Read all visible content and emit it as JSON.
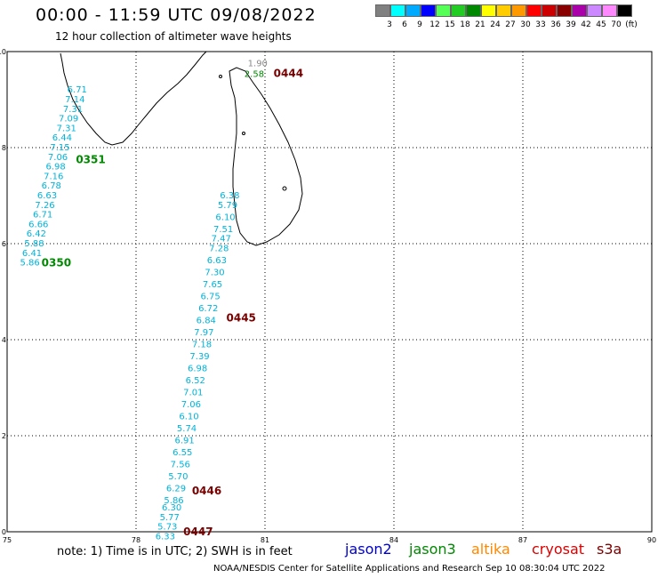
{
  "header": {
    "title": "00:00 - 11:59 UTC 09/08/2022",
    "subtitle": "12 hour collection of altimeter wave heights"
  },
  "legend": {
    "colors": [
      "#808080",
      "#00ffff",
      "#00aaff",
      "#0000ff",
      "#55ff55",
      "#22cc22",
      "#008800",
      "#ffff00",
      "#ffcc00",
      "#ff9900",
      "#ff0000",
      "#cc0000",
      "#880000",
      "#aa00aa",
      "#cc88ff",
      "#ff88ff",
      "#000000"
    ],
    "labels": [
      "3",
      "6",
      "9",
      "12",
      "15",
      "18",
      "21",
      "24",
      "27",
      "30",
      "33",
      "36",
      "39",
      "42",
      "45",
      "70",
      "(ft)"
    ]
  },
  "map": {
    "x_ticks": [
      "75",
      "78",
      "81",
      "84",
      "87",
      "90"
    ],
    "y_ticks": [
      "0",
      "2",
      "4",
      "6",
      "8",
      "10"
    ],
    "passes": [
      {
        "time": "0444",
        "color": "#7a0000",
        "lon": 81.2,
        "lat": 9.55,
        "labels": [
          {
            "v": "1.90",
            "lon": 80.6,
            "lat": 9.75,
            "c": "#888888"
          },
          {
            "v": "2.58",
            "lon": 80.52,
            "lat": 9.53,
            "c": "#008800"
          }
        ]
      },
      {
        "time": "0351",
        "color": "#008800",
        "lon": 76.6,
        "lat": 7.75,
        "labels": [
          {
            "v": "6.71",
            "lon": 76.4,
            "lat": 9.2
          },
          {
            "v": "7.14",
            "lon": 76.35,
            "lat": 9.0
          },
          {
            "v": "7.31",
            "lon": 76.3,
            "lat": 8.8
          },
          {
            "v": "7.09",
            "lon": 76.2,
            "lat": 8.6
          },
          {
            "v": "7.31",
            "lon": 76.15,
            "lat": 8.4
          },
          {
            "v": "6.44",
            "lon": 76.05,
            "lat": 8.2
          },
          {
            "v": "7.15",
            "lon": 76.0,
            "lat": 8.0
          },
          {
            "v": "7.06",
            "lon": 75.95,
            "lat": 7.8
          },
          {
            "v": "6.98",
            "lon": 75.9,
            "lat": 7.6
          },
          {
            "v": "7.16",
            "lon": 75.85,
            "lat": 7.4
          },
          {
            "v": "6.78",
            "lon": 75.8,
            "lat": 7.2
          },
          {
            "v": "6.63",
            "lon": 75.7,
            "lat": 7.0
          },
          {
            "v": "7.26",
            "lon": 75.65,
            "lat": 6.8
          },
          {
            "v": "6.71",
            "lon": 75.6,
            "lat": 6.6
          },
          {
            "v": "6.66",
            "lon": 75.5,
            "lat": 6.4
          },
          {
            "v": "6.42",
            "lon": 75.45,
            "lat": 6.2
          },
          {
            "v": "5.88",
            "lon": 75.4,
            "lat": 6.0
          },
          {
            "v": "6.41",
            "lon": 75.35,
            "lat": 5.8
          },
          {
            "v": "5.86",
            "lon": 75.3,
            "lat": 5.6
          }
        ]
      },
      {
        "time": "0350",
        "color": "#008800",
        "lon": 75.8,
        "lat": 5.6,
        "labels": []
      },
      {
        "time": "0445",
        "color": "#7a0000",
        "lon": 80.1,
        "lat": 4.45,
        "labels": [
          {
            "v": "6.38",
            "lon": 79.95,
            "lat": 7.0
          },
          {
            "v": "5.79",
            "lon": 79.9,
            "lat": 6.8
          },
          {
            "v": "6.10",
            "lon": 79.85,
            "lat": 6.55
          },
          {
            "v": "7.51",
            "lon": 79.8,
            "lat": 6.3
          },
          {
            "v": "7.47",
            "lon": 79.75,
            "lat": 6.1
          },
          {
            "v": "7.28",
            "lon": 79.7,
            "lat": 5.9
          },
          {
            "v": "6.63",
            "lon": 79.65,
            "lat": 5.65
          },
          {
            "v": "7.30",
            "lon": 79.6,
            "lat": 5.4
          },
          {
            "v": "7.65",
            "lon": 79.55,
            "lat": 5.15
          },
          {
            "v": "6.75",
            "lon": 79.5,
            "lat": 4.9
          },
          {
            "v": "6.72",
            "lon": 79.45,
            "lat": 4.65
          },
          {
            "v": "6.84",
            "lon": 79.4,
            "lat": 4.4
          },
          {
            "v": "7.97",
            "lon": 79.35,
            "lat": 4.15
          },
          {
            "v": "7.18",
            "lon": 79.3,
            "lat": 3.9
          },
          {
            "v": "7.39",
            "lon": 79.25,
            "lat": 3.65
          },
          {
            "v": "6.98",
            "lon": 79.2,
            "lat": 3.4
          },
          {
            "v": "6.52",
            "lon": 79.15,
            "lat": 3.15
          },
          {
            "v": "7.01",
            "lon": 79.1,
            "lat": 2.9
          },
          {
            "v": "7.06",
            "lon": 79.05,
            "lat": 2.65
          },
          {
            "v": "6.10",
            "lon": 79.0,
            "lat": 2.4
          },
          {
            "v": "5.74",
            "lon": 78.95,
            "lat": 2.15
          },
          {
            "v": "6.91",
            "lon": 78.9,
            "lat": 1.9
          },
          {
            "v": "6.55",
            "lon": 78.85,
            "lat": 1.65
          },
          {
            "v": "7.56",
            "lon": 78.8,
            "lat": 1.4
          },
          {
            "v": "5.70",
            "lon": 78.75,
            "lat": 1.15
          },
          {
            "v": "6.29",
            "lon": 78.7,
            "lat": 0.9
          }
        ]
      },
      {
        "time": "0446",
        "color": "#7a0000",
        "lon": 79.3,
        "lat": 0.85,
        "labels": [
          {
            "v": "5.86",
            "lon": 78.65,
            "lat": 0.65
          },
          {
            "v": "6.30",
            "lon": 78.6,
            "lat": 0.5
          }
        ]
      },
      {
        "time": "0447",
        "color": "#7a0000",
        "lon": 79.1,
        "lat": 0.0,
        "labels": [
          {
            "v": "5.77",
            "lon": 78.55,
            "lat": 0.3
          },
          {
            "v": "5.73",
            "lon": 78.5,
            "lat": 0.1
          },
          {
            "v": "6.33",
            "lon": 78.45,
            "lat": -0.1
          }
        ]
      }
    ]
  },
  "footer": {
    "note": "note: 1) Time is in UTC; 2) SWH is in feet",
    "satellites": [
      {
        "name": "jason2",
        "color": "#0000cc"
      },
      {
        "name": "jason3",
        "color": "#008800"
      },
      {
        "name": "altika",
        "color": "#ff8800"
      },
      {
        "name": "cryosat",
        "color": "#dd0000"
      },
      {
        "name": "s3a",
        "color": "#7a0000"
      }
    ],
    "credit": "NOAA/NESDIS Center for Satellite Applications and Research    Sep 10 08:30:04 UTC 2022"
  }
}
